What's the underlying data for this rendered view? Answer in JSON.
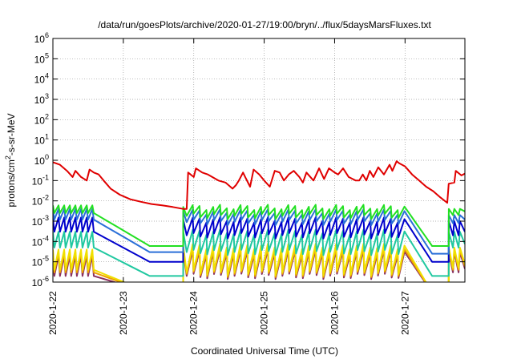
{
  "chart_data": {
    "type": "line",
    "title": "/data/run/goesPlots/archive/2020-01-27/19:00/bryn/../flux/5daysMarsFluxes.txt",
    "xlabel": "Coordinated Universal Time (UTC)",
    "ylabel_parts": {
      "pre": "protons/cm",
      "sup": "2",
      "post": "-s-sr-MeV"
    },
    "yscale": "log",
    "ylim": [
      1e-06,
      1000000.0
    ],
    "xlim": [
      0,
      5.85
    ],
    "grid": true,
    "x_ticks": [
      {
        "x": 0,
        "label": "2020-1-22"
      },
      {
        "x": 1,
        "label": "2020-1-23"
      },
      {
        "x": 2,
        "label": "2020-1-24"
      },
      {
        "x": 3,
        "label": "2020-1-25"
      },
      {
        "x": 4,
        "label": "2020-1-26"
      },
      {
        "x": 5,
        "label": "2020-1-27"
      }
    ],
    "y_ticks": [
      {
        "exp": -6,
        "base": "10",
        "sup": "-6"
      },
      {
        "exp": -5,
        "base": "10",
        "sup": "-5"
      },
      {
        "exp": -4,
        "base": "10",
        "sup": "-4"
      },
      {
        "exp": -3,
        "base": "10",
        "sup": "-3"
      },
      {
        "exp": -2,
        "base": "10",
        "sup": "-2"
      },
      {
        "exp": -1,
        "base": "10",
        "sup": "-1"
      },
      {
        "exp": 0,
        "base": "10",
        "sup": "0"
      },
      {
        "exp": 1,
        "base": "10",
        "sup": "1"
      },
      {
        "exp": 2,
        "base": "10",
        "sup": "2"
      },
      {
        "exp": 3,
        "base": "10",
        "sup": "3"
      },
      {
        "exp": 4,
        "base": "10",
        "sup": "4"
      },
      {
        "exp": 5,
        "base": "10",
        "sup": "5"
      },
      {
        "exp": 6,
        "base": "10",
        "sup": "6"
      }
    ],
    "series": [
      {
        "color": "#e00000",
        "points": [
          [
            0.0,
            0.8
          ],
          [
            0.1,
            0.6
          ],
          [
            0.2,
            0.3
          ],
          [
            0.28,
            0.15
          ],
          [
            0.32,
            0.3
          ],
          [
            0.4,
            0.15
          ],
          [
            0.48,
            0.1
          ],
          [
            0.52,
            0.35
          ],
          [
            0.58,
            0.25
          ],
          [
            0.65,
            0.2
          ],
          [
            0.72,
            0.1
          ],
          [
            0.82,
            0.04
          ],
          [
            0.95,
            0.02
          ],
          [
            1.1,
            0.012
          ],
          [
            1.25,
            0.009
          ],
          [
            1.4,
            0.007
          ],
          [
            1.55,
            0.006
          ],
          [
            1.7,
            0.005
          ],
          [
            1.85,
            0.004
          ],
          [
            1.9,
            0.004
          ],
          [
            1.92,
            0.25
          ],
          [
            2.0,
            0.15
          ],
          [
            2.03,
            0.4
          ],
          [
            2.12,
            0.25
          ],
          [
            2.2,
            0.2
          ],
          [
            2.35,
            0.1
          ],
          [
            2.45,
            0.08
          ],
          [
            2.55,
            0.04
          ],
          [
            2.6,
            0.06
          ],
          [
            2.64,
            0.1
          ],
          [
            2.7,
            0.25
          ],
          [
            2.73,
            0.15
          ],
          [
            2.8,
            0.05
          ],
          [
            2.85,
            0.35
          ],
          [
            2.93,
            0.2
          ],
          [
            3.0,
            0.1
          ],
          [
            3.08,
            0.05
          ],
          [
            3.15,
            0.3
          ],
          [
            3.22,
            0.25
          ],
          [
            3.28,
            0.1
          ],
          [
            3.35,
            0.2
          ],
          [
            3.42,
            0.3
          ],
          [
            3.5,
            0.15
          ],
          [
            3.55,
            0.08
          ],
          [
            3.6,
            0.25
          ],
          [
            3.7,
            0.1
          ],
          [
            3.78,
            0.4
          ],
          [
            3.85,
            0.12
          ],
          [
            3.92,
            0.4
          ],
          [
            4.0,
            0.25
          ],
          [
            4.05,
            0.2
          ],
          [
            4.12,
            0.4
          ],
          [
            4.2,
            0.15
          ],
          [
            4.3,
            0.1
          ],
          [
            4.35,
            0.1
          ],
          [
            4.4,
            0.2
          ],
          [
            4.45,
            0.1
          ],
          [
            4.5,
            0.3
          ],
          [
            4.55,
            0.15
          ],
          [
            4.62,
            0.45
          ],
          [
            4.7,
            0.2
          ],
          [
            4.78,
            0.6
          ],
          [
            4.82,
            0.3
          ],
          [
            4.88,
            0.9
          ],
          [
            4.92,
            0.7
          ],
          [
            5.0,
            0.5
          ],
          [
            5.1,
            0.2
          ],
          [
            5.2,
            0.1
          ],
          [
            5.3,
            0.05
          ],
          [
            5.4,
            0.03
          ],
          [
            5.5,
            0.015
          ],
          [
            5.6,
            0.008
          ],
          [
            5.62,
            0.07
          ],
          [
            5.7,
            0.08
          ],
          [
            5.72,
            0.3
          ],
          [
            5.8,
            0.18
          ],
          [
            5.85,
            0.22
          ]
        ]
      },
      {
        "color": "#22e022",
        "saw": {
          "start": 0.0,
          "end": 0.6,
          "hi": 0.006,
          "lo": 0.0025,
          "decay_to": 6e-05,
          "decay_end": 1.85,
          "jump": 1.85,
          "hi2": 0.005,
          "lo2": 0.0018,
          "end2": 5.0,
          "decay2": 6e-05,
          "end3": 5.62,
          "last_hi": 0.004,
          "last_lo": 0.002
        }
      },
      {
        "color": "#2a6fd8",
        "saw": {
          "start": 0.0,
          "end": 0.6,
          "hi": 0.004,
          "lo": 0.0012,
          "decay_to": 3e-05,
          "decay_end": 1.85,
          "jump": 1.85,
          "hi2": 0.003,
          "lo2": 0.0009,
          "end2": 5.0,
          "decay2": 2.5e-05,
          "end3": 5.62,
          "last_hi": 0.002,
          "last_lo": 0.0008
        }
      },
      {
        "color": "#0000cc",
        "saw": {
          "start": 0.0,
          "end": 0.6,
          "hi": 0.0015,
          "lo": 0.0003,
          "decay_to": 1e-05,
          "decay_end": 1.85,
          "jump": 1.85,
          "hi2": 0.0012,
          "lo2": 0.0002,
          "end2": 5.0,
          "decay2": 1e-05,
          "end3": 5.62,
          "last_hi": 0.001,
          "last_lo": 0.0002
        }
      },
      {
        "color": "#20c8a0",
        "saw": {
          "start": 0.0,
          "end": 0.6,
          "hi": 0.0003,
          "lo": 5e-05,
          "decay_to": 2e-06,
          "decay_end": 1.85,
          "jump": 1.85,
          "hi2": 0.0003,
          "lo2": 3e-05,
          "end2": 5.0,
          "decay2": 2e-06,
          "end3": 5.62,
          "last_hi": 0.0003,
          "last_lo": 5e-05
        }
      },
      {
        "color": "#f0e000",
        "saw": {
          "start": 0.0,
          "end": 0.6,
          "hi": 4e-05,
          "lo": 4e-06,
          "decay_to": 3e-07,
          "decay_end": 1.85,
          "jump": 1.85,
          "hi2": 6e-05,
          "lo2": 3e-06,
          "end2": 5.0,
          "decay2": 3e-07,
          "end3": 5.62,
          "last_hi": 5e-05,
          "last_lo": 5e-06
        }
      },
      {
        "color": "#f0a000",
        "saw": {
          "start": 0.0,
          "end": 0.6,
          "hi": 3e-05,
          "lo": 3e-06,
          "decay_to": 3e-07,
          "decay_end": 1.85,
          "jump": 1.85,
          "hi2": 4e-05,
          "lo2": 2.5e-06,
          "end2": 5.0,
          "decay2": 3e-07,
          "end3": 5.62,
          "last_hi": 4e-05,
          "last_lo": 4e-06
        }
      },
      {
        "color": "#8a3060",
        "saw": {
          "start": 0.0,
          "end": 0.6,
          "hi": 2e-05,
          "lo": 2e-06,
          "decay_to": 3e-07,
          "decay_end": 1.85,
          "jump": 1.85,
          "hi2": 3e-05,
          "lo2": 2e-06,
          "end2": 5.0,
          "decay2": 3e-07,
          "end3": 5.62,
          "last_hi": 3e-05,
          "last_lo": 3e-06
        }
      }
    ]
  }
}
